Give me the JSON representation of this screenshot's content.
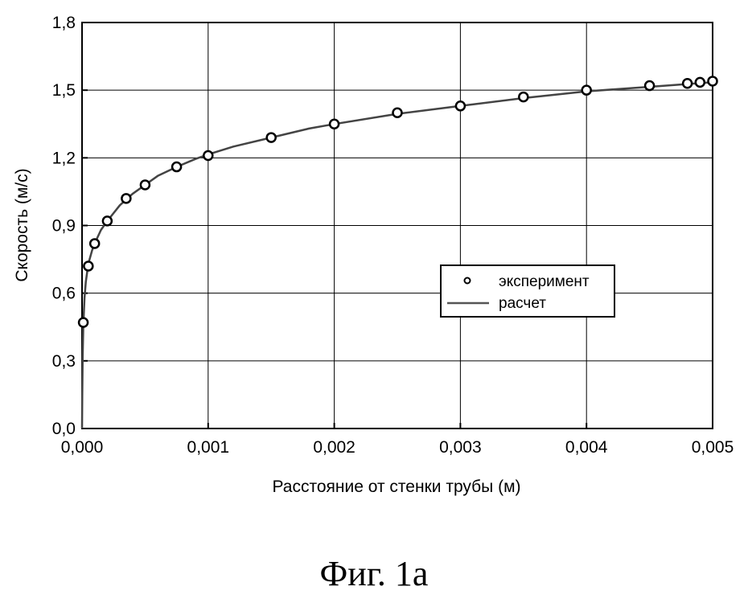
{
  "caption": "Фиг. 1a",
  "chart_data": {
    "type": "scatter",
    "xlabel": "Расстояние от стенки трубы (м)",
    "ylabel": "Скорость (м/с)",
    "xlim": [
      0,
      0.005
    ],
    "ylim": [
      0,
      1.8
    ],
    "xticks": [
      0,
      0.001,
      0.002,
      0.003,
      0.004,
      0.005
    ],
    "xtick_labels": [
      "0,000",
      "0,001",
      "0,002",
      "0,003",
      "0,004",
      "0,005"
    ],
    "yticks": [
      0,
      0.3,
      0.6,
      0.9,
      1.2,
      1.5,
      1.8
    ],
    "ytick_labels": [
      "0,0",
      "0,3",
      "0,6",
      "0,9",
      "1,2",
      "1,5",
      "1,8"
    ],
    "grid": true,
    "legend_position": "right-middle",
    "series": [
      {
        "name": "эксперимент",
        "kind": "markers",
        "x": [
          1e-05,
          5e-05,
          0.0001,
          0.0002,
          0.00035,
          0.0005,
          0.00075,
          0.001,
          0.0015,
          0.002,
          0.0025,
          0.003,
          0.0035,
          0.004,
          0.0045,
          0.0048,
          0.0049,
          0.005
        ],
        "y": [
          0.47,
          0.72,
          0.82,
          0.92,
          1.02,
          1.08,
          1.16,
          1.21,
          1.29,
          1.35,
          1.4,
          1.43,
          1.47,
          1.5,
          1.52,
          1.53,
          1.535,
          1.54
        ]
      },
      {
        "name": "расчет",
        "kind": "line",
        "x": [
          0,
          2e-06,
          5e-06,
          1e-05,
          2e-05,
          3e-05,
          5e-05,
          8e-05,
          0.0001,
          0.00015,
          0.0002,
          0.0003,
          0.0004,
          0.0005,
          0.0006,
          0.00075,
          0.0009,
          0.001,
          0.0012,
          0.0015,
          0.0018,
          0.002,
          0.0025,
          0.003,
          0.0035,
          0.004,
          0.0045,
          0.005
        ],
        "y": [
          0.0,
          0.15,
          0.32,
          0.46,
          0.58,
          0.65,
          0.73,
          0.79,
          0.82,
          0.88,
          0.92,
          0.99,
          1.04,
          1.08,
          1.12,
          1.16,
          1.195,
          1.215,
          1.25,
          1.29,
          1.33,
          1.35,
          1.395,
          1.43,
          1.465,
          1.495,
          1.515,
          1.535
        ]
      }
    ]
  }
}
